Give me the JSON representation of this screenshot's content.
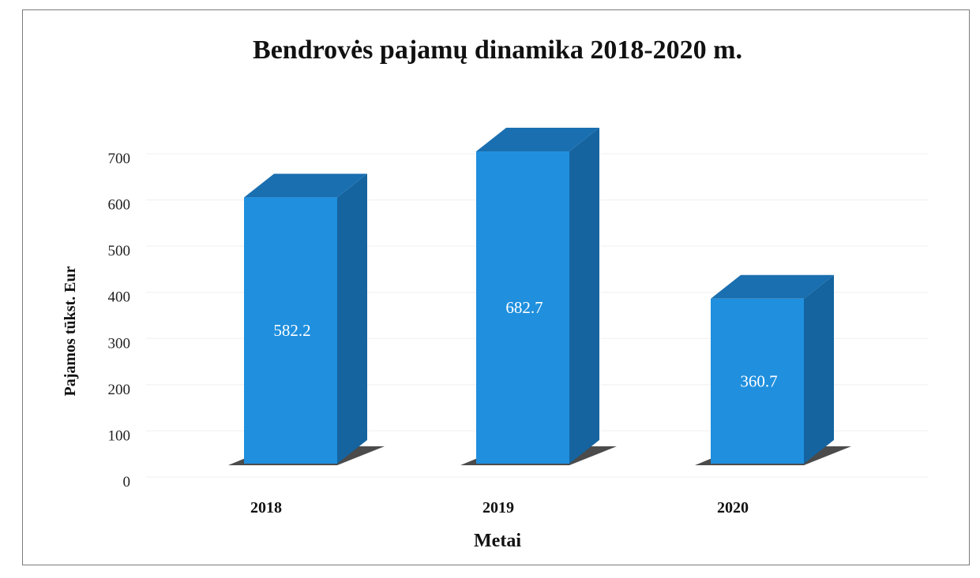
{
  "chart_data": {
    "type": "bar",
    "title": "Bendrovės pajamų dinamika  2018-2020 m.",
    "xlabel": "Metai",
    "ylabel": "Pajamos tūkst. Eur",
    "categories": [
      "2018",
      "2019",
      "2020"
    ],
    "values": [
      582.2,
      682.7,
      360.7
    ],
    "data_labels": [
      "582.2",
      "682.7",
      "360.7"
    ],
    "ylim": [
      0,
      700
    ],
    "yticks": [
      0,
      100,
      200,
      300,
      400,
      500,
      600,
      700
    ],
    "grid": true,
    "legend": "none",
    "colors": {
      "bar_front": "#1f8fde",
      "bar_side": "#15649f",
      "bar_top": "#1a6fb0",
      "shadow": "#2b2b2b"
    }
  }
}
